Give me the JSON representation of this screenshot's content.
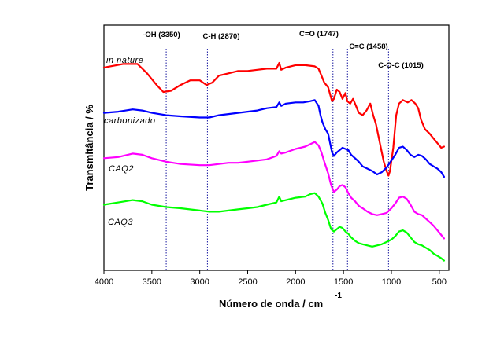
{
  "chart_data": {
    "type": "line",
    "xlabel": "Número de onda / cm",
    "xlabel_superscript": "-1",
    "ylabel": "Transmitância / %",
    "xlim": [
      4000,
      400
    ],
    "x_reversed": true,
    "ylim": [
      0,
      1
    ],
    "x_ticks": [
      4000,
      3500,
      3000,
      2500,
      2000,
      1500,
      1000,
      500
    ],
    "y_ticks_shown": false,
    "grid": false,
    "legend": "none",
    "annotations": [
      {
        "label": "-OH (3350)",
        "x": 3350
      },
      {
        "label": "C-H (2870)",
        "x": 2870
      },
      {
        "label": "C=O (1747)",
        "x": 1747
      },
      {
        "label": "C=C (1458)",
        "x": 1458
      },
      {
        "label": "C-O-C (1015)",
        "x": 1015
      }
    ],
    "reference_lines": [
      3350,
      2920,
      1610,
      1458,
      1030
    ],
    "series": [
      {
        "name": "in nature",
        "color": "#ff0000",
        "points": [
          [
            4000,
            0.845
          ],
          [
            3800,
            0.86
          ],
          [
            3650,
            0.86
          ],
          [
            3550,
            0.82
          ],
          [
            3450,
            0.77
          ],
          [
            3380,
            0.74
          ],
          [
            3300,
            0.745
          ],
          [
            3200,
            0.77
          ],
          [
            3100,
            0.79
          ],
          [
            3000,
            0.79
          ],
          [
            2930,
            0.77
          ],
          [
            2870,
            0.78
          ],
          [
            2800,
            0.81
          ],
          [
            2700,
            0.82
          ],
          [
            2600,
            0.83
          ],
          [
            2500,
            0.83
          ],
          [
            2400,
            0.835
          ],
          [
            2300,
            0.84
          ],
          [
            2200,
            0.84
          ],
          [
            2170,
            0.865
          ],
          [
            2150,
            0.835
          ],
          [
            2100,
            0.845
          ],
          [
            2000,
            0.855
          ],
          [
            1900,
            0.855
          ],
          [
            1800,
            0.85
          ],
          [
            1760,
            0.84
          ],
          [
            1730,
            0.81
          ],
          [
            1700,
            0.78
          ],
          [
            1660,
            0.76
          ],
          [
            1620,
            0.7
          ],
          [
            1600,
            0.71
          ],
          [
            1570,
            0.75
          ],
          [
            1540,
            0.74
          ],
          [
            1510,
            0.71
          ],
          [
            1480,
            0.735
          ],
          [
            1460,
            0.7
          ],
          [
            1430,
            0.69
          ],
          [
            1400,
            0.71
          ],
          [
            1370,
            0.68
          ],
          [
            1340,
            0.65
          ],
          [
            1300,
            0.64
          ],
          [
            1260,
            0.66
          ],
          [
            1220,
            0.69
          ],
          [
            1190,
            0.64
          ],
          [
            1160,
            0.6
          ],
          [
            1120,
            0.52
          ],
          [
            1080,
            0.44
          ],
          [
            1050,
            0.4
          ],
          [
            1030,
            0.38
          ],
          [
            1015,
            0.4
          ],
          [
            980,
            0.5
          ],
          [
            950,
            0.64
          ],
          [
            920,
            0.69
          ],
          [
            880,
            0.705
          ],
          [
            830,
            0.695
          ],
          [
            790,
            0.705
          ],
          [
            750,
            0.69
          ],
          [
            720,
            0.67
          ],
          [
            690,
            0.62
          ],
          [
            650,
            0.58
          ],
          [
            600,
            0.56
          ],
          [
            560,
            0.54
          ],
          [
            520,
            0.52
          ],
          [
            480,
            0.5
          ],
          [
            450,
            0.505
          ]
        ]
      },
      {
        "name": "carbonizado",
        "color": "#0000ff",
        "points": [
          [
            4000,
            0.65
          ],
          [
            3850,
            0.655
          ],
          [
            3700,
            0.665
          ],
          [
            3600,
            0.66
          ],
          [
            3500,
            0.65
          ],
          [
            3350,
            0.64
          ],
          [
            3200,
            0.635
          ],
          [
            3000,
            0.63
          ],
          [
            2900,
            0.63
          ],
          [
            2800,
            0.64
          ],
          [
            2700,
            0.645
          ],
          [
            2600,
            0.65
          ],
          [
            2500,
            0.655
          ],
          [
            2400,
            0.66
          ],
          [
            2300,
            0.67
          ],
          [
            2200,
            0.675
          ],
          [
            2170,
            0.695
          ],
          [
            2150,
            0.68
          ],
          [
            2100,
            0.69
          ],
          [
            2000,
            0.695
          ],
          [
            1920,
            0.695
          ],
          [
            1850,
            0.7
          ],
          [
            1800,
            0.705
          ],
          [
            1760,
            0.68
          ],
          [
            1740,
            0.64
          ],
          [
            1720,
            0.61
          ],
          [
            1690,
            0.58
          ],
          [
            1660,
            0.56
          ],
          [
            1620,
            0.48
          ],
          [
            1600,
            0.465
          ],
          [
            1570,
            0.48
          ],
          [
            1540,
            0.49
          ],
          [
            1510,
            0.5
          ],
          [
            1480,
            0.495
          ],
          [
            1450,
            0.49
          ],
          [
            1420,
            0.47
          ],
          [
            1380,
            0.455
          ],
          [
            1340,
            0.44
          ],
          [
            1300,
            0.42
          ],
          [
            1250,
            0.41
          ],
          [
            1200,
            0.4
          ],
          [
            1150,
            0.385
          ],
          [
            1100,
            0.395
          ],
          [
            1050,
            0.415
          ],
          [
            1000,
            0.445
          ],
          [
            960,
            0.47
          ],
          [
            920,
            0.5
          ],
          [
            880,
            0.505
          ],
          [
            840,
            0.49
          ],
          [
            800,
            0.47
          ],
          [
            760,
            0.46
          ],
          [
            720,
            0.47
          ],
          [
            680,
            0.465
          ],
          [
            640,
            0.45
          ],
          [
            600,
            0.43
          ],
          [
            560,
            0.42
          ],
          [
            520,
            0.41
          ],
          [
            480,
            0.395
          ],
          [
            450,
            0.375
          ]
        ]
      },
      {
        "name": "CAQ2",
        "color": "#ff00ff",
        "points": [
          [
            4000,
            0.455
          ],
          [
            3850,
            0.46
          ],
          [
            3700,
            0.475
          ],
          [
            3600,
            0.47
          ],
          [
            3500,
            0.455
          ],
          [
            3350,
            0.44
          ],
          [
            3200,
            0.43
          ],
          [
            3000,
            0.425
          ],
          [
            2900,
            0.425
          ],
          [
            2800,
            0.43
          ],
          [
            2700,
            0.435
          ],
          [
            2600,
            0.435
          ],
          [
            2500,
            0.44
          ],
          [
            2400,
            0.445
          ],
          [
            2300,
            0.45
          ],
          [
            2200,
            0.465
          ],
          [
            2170,
            0.485
          ],
          [
            2150,
            0.475
          ],
          [
            2100,
            0.48
          ],
          [
            2000,
            0.495
          ],
          [
            1900,
            0.505
          ],
          [
            1850,
            0.515
          ],
          [
            1800,
            0.525
          ],
          [
            1760,
            0.51
          ],
          [
            1730,
            0.48
          ],
          [
            1700,
            0.44
          ],
          [
            1660,
            0.39
          ],
          [
            1630,
            0.34
          ],
          [
            1600,
            0.31
          ],
          [
            1570,
            0.32
          ],
          [
            1540,
            0.335
          ],
          [
            1510,
            0.34
          ],
          [
            1480,
            0.33
          ],
          [
            1450,
            0.305
          ],
          [
            1420,
            0.285
          ],
          [
            1380,
            0.27
          ],
          [
            1340,
            0.25
          ],
          [
            1300,
            0.24
          ],
          [
            1250,
            0.225
          ],
          [
            1200,
            0.215
          ],
          [
            1150,
            0.21
          ],
          [
            1100,
            0.215
          ],
          [
            1050,
            0.22
          ],
          [
            1000,
            0.24
          ],
          [
            960,
            0.26
          ],
          [
            920,
            0.285
          ],
          [
            880,
            0.29
          ],
          [
            840,
            0.28
          ],
          [
            800,
            0.255
          ],
          [
            760,
            0.225
          ],
          [
            720,
            0.215
          ],
          [
            680,
            0.21
          ],
          [
            640,
            0.195
          ],
          [
            600,
            0.18
          ],
          [
            560,
            0.165
          ],
          [
            520,
            0.145
          ],
          [
            480,
            0.125
          ],
          [
            450,
            0.11
          ]
        ]
      },
      {
        "name": "CAQ3",
        "color": "#00ff00",
        "points": [
          [
            4000,
            0.255
          ],
          [
            3850,
            0.265
          ],
          [
            3700,
            0.275
          ],
          [
            3600,
            0.27
          ],
          [
            3500,
            0.255
          ],
          [
            3350,
            0.245
          ],
          [
            3200,
            0.24
          ],
          [
            3000,
            0.23
          ],
          [
            2900,
            0.225
          ],
          [
            2800,
            0.225
          ],
          [
            2700,
            0.23
          ],
          [
            2600,
            0.235
          ],
          [
            2500,
            0.24
          ],
          [
            2400,
            0.245
          ],
          [
            2300,
            0.255
          ],
          [
            2200,
            0.265
          ],
          [
            2170,
            0.29
          ],
          [
            2150,
            0.27
          ],
          [
            2100,
            0.275
          ],
          [
            2000,
            0.285
          ],
          [
            1900,
            0.29
          ],
          [
            1850,
            0.3
          ],
          [
            1800,
            0.305
          ],
          [
            1760,
            0.29
          ],
          [
            1720,
            0.26
          ],
          [
            1690,
            0.22
          ],
          [
            1660,
            0.19
          ],
          [
            1630,
            0.15
          ],
          [
            1600,
            0.14
          ],
          [
            1570,
            0.15
          ],
          [
            1540,
            0.16
          ],
          [
            1510,
            0.155
          ],
          [
            1480,
            0.14
          ],
          [
            1450,
            0.13
          ],
          [
            1420,
            0.115
          ],
          [
            1380,
            0.1
          ],
          [
            1340,
            0.09
          ],
          [
            1300,
            0.085
          ],
          [
            1250,
            0.08
          ],
          [
            1200,
            0.075
          ],
          [
            1150,
            0.08
          ],
          [
            1100,
            0.085
          ],
          [
            1050,
            0.095
          ],
          [
            1000,
            0.105
          ],
          [
            960,
            0.12
          ],
          [
            920,
            0.14
          ],
          [
            880,
            0.145
          ],
          [
            840,
            0.135
          ],
          [
            800,
            0.115
          ],
          [
            760,
            0.095
          ],
          [
            720,
            0.085
          ],
          [
            680,
            0.08
          ],
          [
            640,
            0.07
          ],
          [
            600,
            0.06
          ],
          [
            560,
            0.045
          ],
          [
            520,
            0.035
          ],
          [
            480,
            0.025
          ],
          [
            450,
            0.015
          ]
        ]
      }
    ]
  }
}
